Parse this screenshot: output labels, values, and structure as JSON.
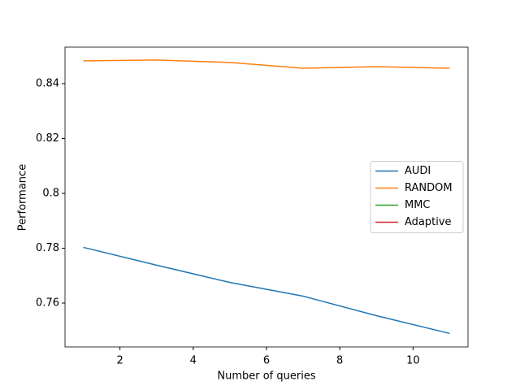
{
  "chart_data": {
    "type": "line",
    "xlabel": "Number of queries",
    "ylabel": "Performance",
    "x": [
      1,
      3,
      5,
      7,
      9,
      11
    ],
    "series": [
      {
        "name": "AUDI",
        "color": "#1f77b4",
        "values": [
          0.7803,
          0.7738,
          0.7675,
          0.7625,
          0.7554,
          0.7489
        ]
      },
      {
        "name": "RANDOM",
        "color": "#ff7f0e",
        "values": [
          0.8483,
          0.8486,
          0.8477,
          0.8456,
          0.8462,
          0.8456
        ]
      },
      {
        "name": "MMC",
        "color": "#2ca02c",
        "values": [
          null,
          null,
          null,
          null,
          null,
          null
        ]
      },
      {
        "name": "Adaptive",
        "color": "#d62728",
        "values": [
          null,
          null,
          null,
          null,
          null,
          null
        ]
      }
    ],
    "xlim": [
      0.5,
      11.5
    ],
    "xticks": [
      2,
      4,
      6,
      8,
      10
    ],
    "ylim": [
      0.744,
      0.8533
    ],
    "yticks": [
      0.76,
      0.78,
      0.8,
      0.82,
      0.84
    ],
    "grid": false,
    "legend": "center right"
  }
}
